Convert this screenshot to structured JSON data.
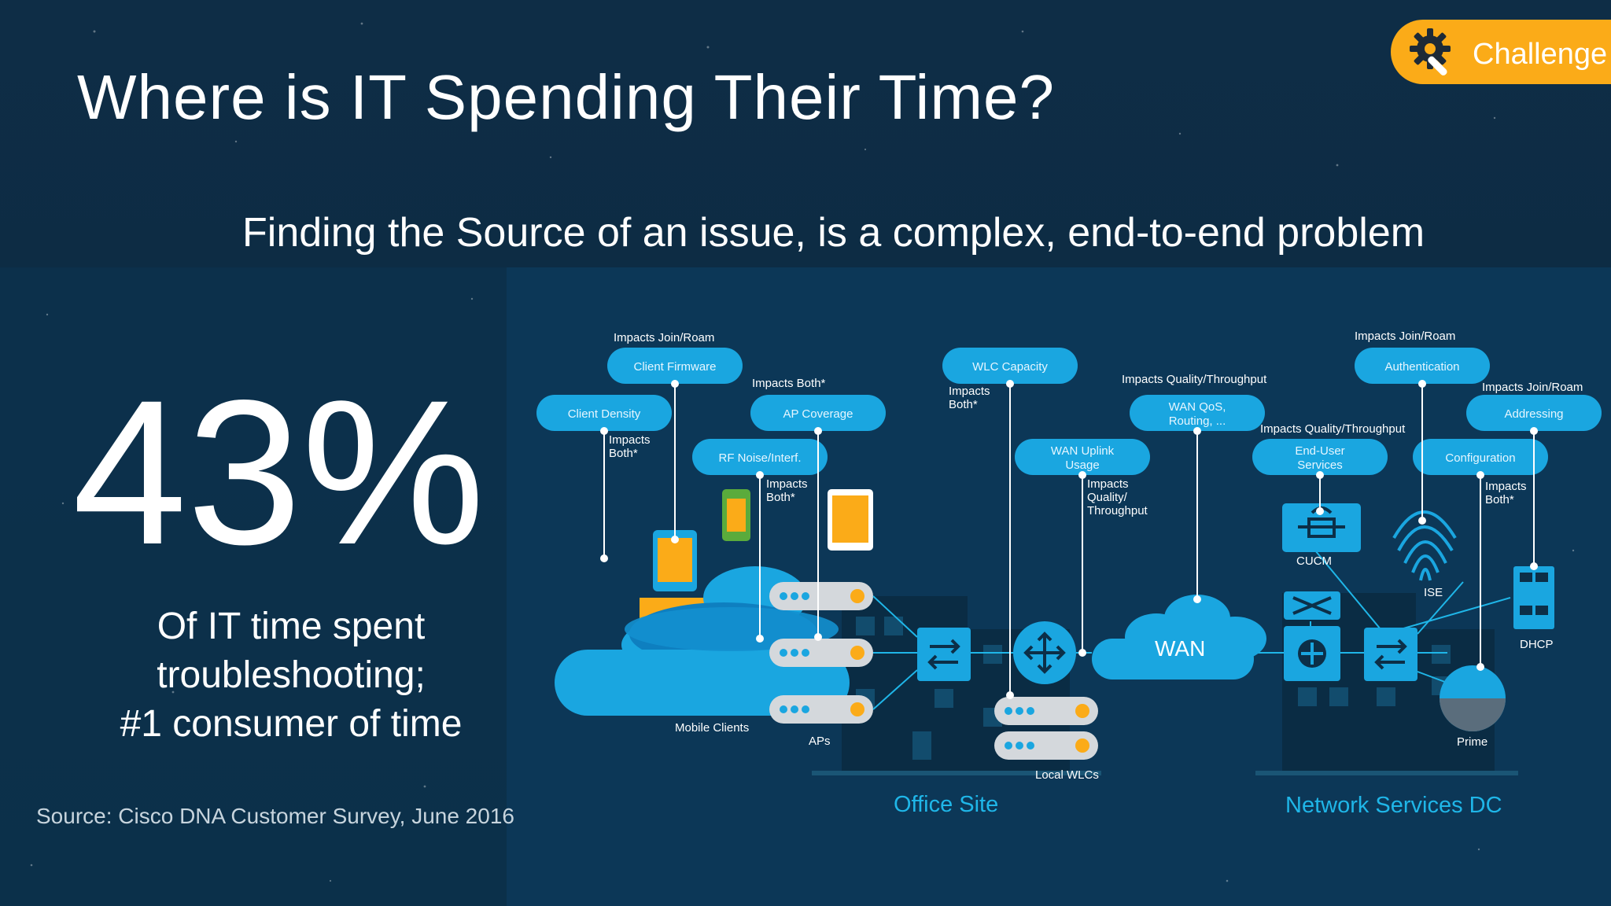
{
  "badge": {
    "label": "Challenge",
    "icon": "gear-wrench-icon",
    "color": "#fbab18"
  },
  "title": "Where is IT Spending Their Time?",
  "subtitle": "Finding the Source of an issue, is a complex, end-to-end problem",
  "stat": {
    "value": "43%",
    "description": "Of IT time spent\ntroubleshooting;\n#1 consumer of time"
  },
  "source": "Source: Cisco DNA Customer Survey, June 2016",
  "colors": {
    "accent": "#1fb6e8",
    "pill": "#1aa6e0",
    "background": "#0c2f48",
    "orange": "#fbab18"
  },
  "diagram": {
    "pills": [
      {
        "id": "client-firmware",
        "label": "Client Firmware"
      },
      {
        "id": "client-density",
        "label": "Client Density"
      },
      {
        "id": "ap-coverage",
        "label": "AP Coverage"
      },
      {
        "id": "rf-noise",
        "label": "RF Noise/Interf."
      },
      {
        "id": "wlc-capacity",
        "label": "WLC Capacity"
      },
      {
        "id": "wan-uplink",
        "label_line1": "WAN Uplink",
        "label_line2": "Usage"
      },
      {
        "id": "wan-qos",
        "label_line1": "WAN QoS,",
        "label_line2": "Routing, ..."
      },
      {
        "id": "authentication",
        "label": "Authentication"
      },
      {
        "id": "end-user-services",
        "label_line1": "End-User",
        "label_line2": "Services"
      },
      {
        "id": "configuration",
        "label": "Configuration"
      },
      {
        "id": "addressing",
        "label": "Addressing"
      }
    ],
    "annotations": {
      "join_roam_firmware": "Impacts Join/Roam",
      "join_roam_auth": "Impacts Join/Roam",
      "join_roam_addressing": "Impacts Join/Roam",
      "both_ap_coverage": "Impacts Both*",
      "impacts": "Impacts",
      "both": "Both*",
      "quality_throughput_wan": "Impacts Quality/Throughput",
      "quality_throughput_eus": "Impacts Quality/Throughput",
      "quality": "Quality/",
      "throughput": "Throughput"
    },
    "components": {
      "mobile_clients": "Mobile Clients",
      "aps": "APs",
      "local_wlcs": "Local WLCs",
      "wan": "WAN",
      "cucm": "CUCM",
      "ise": "ISE",
      "dhcp": "DHCP",
      "prime": "Prime"
    },
    "sites": {
      "office": "Office Site",
      "dc": "Network Services DC"
    }
  }
}
